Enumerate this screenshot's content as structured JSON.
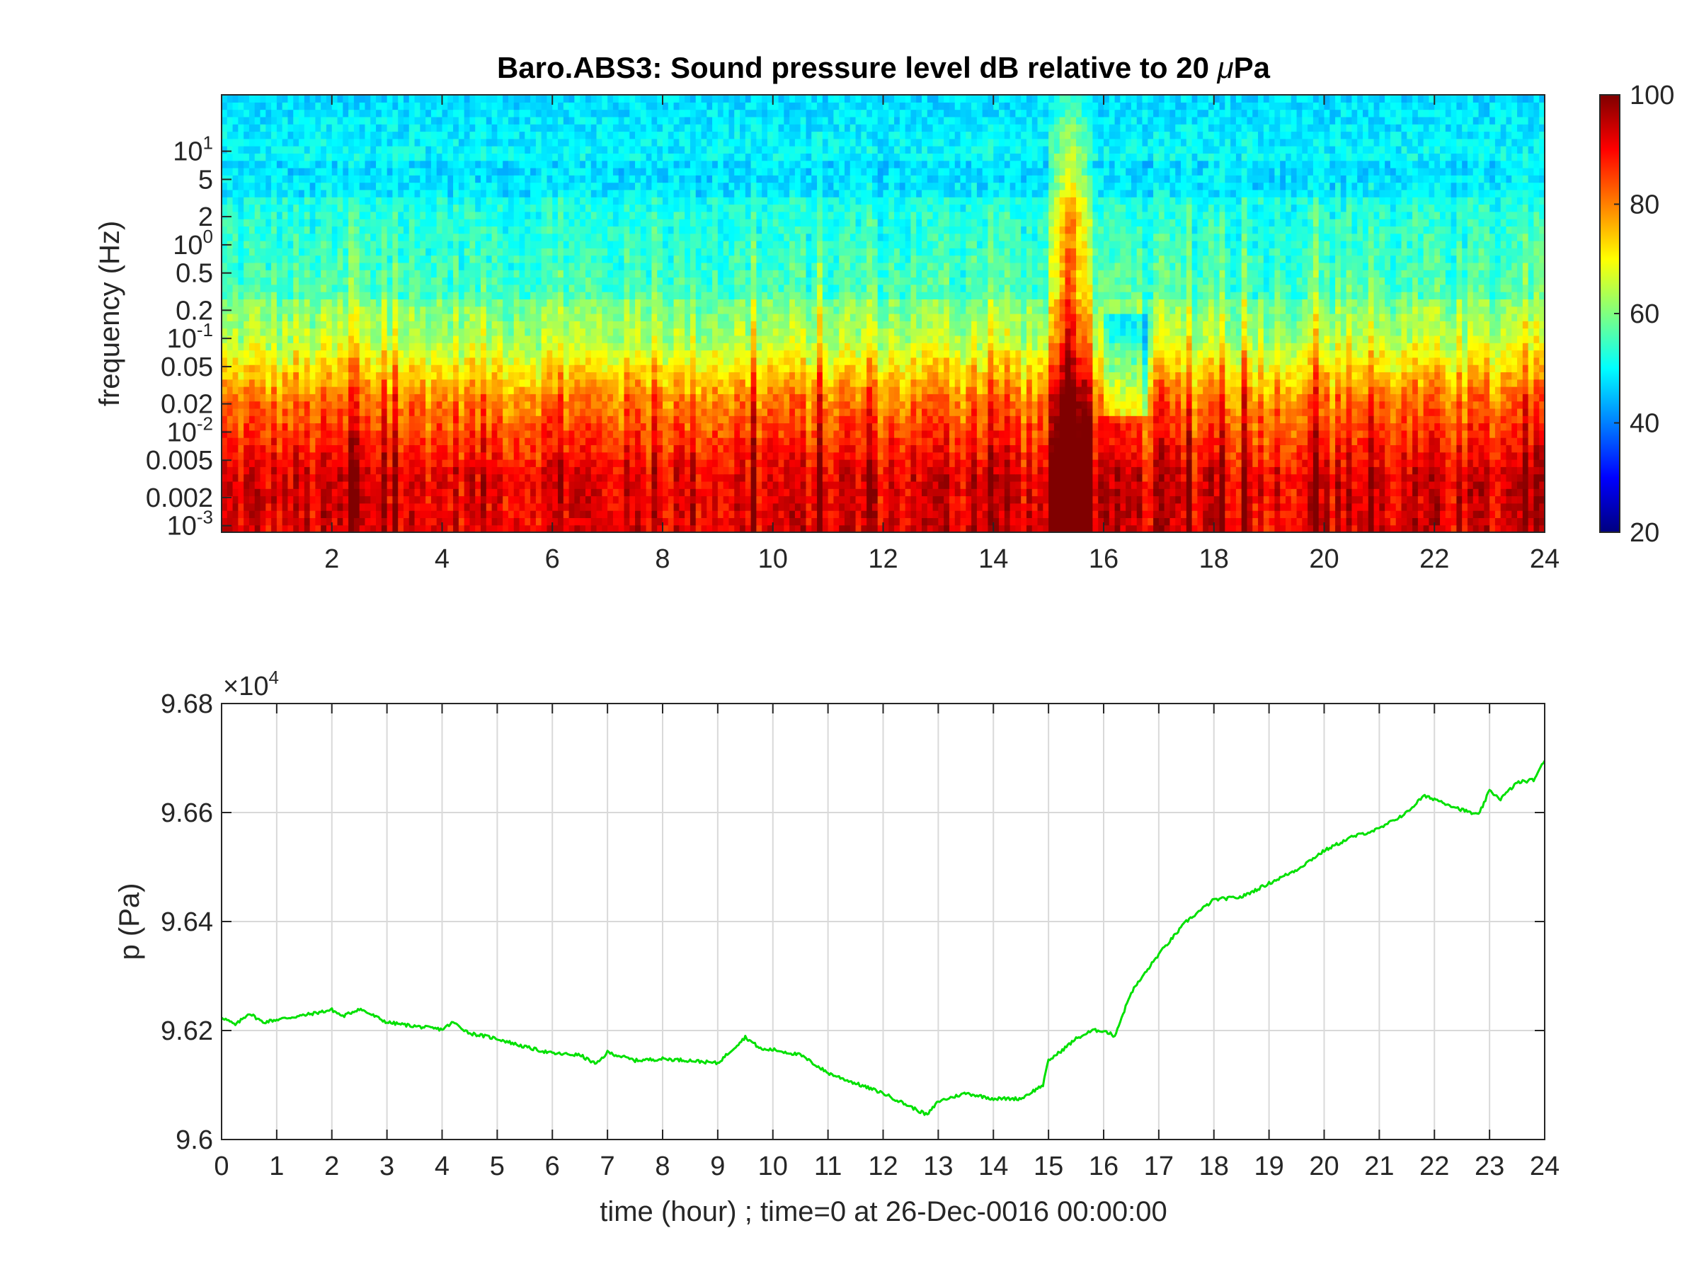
{
  "chart_data": [
    {
      "type": "heatmap",
      "title": "Baro.ABS3: Sound pressure level dB relative to 20 μPa",
      "title_main": "Baro.ABS3: Sound pressure level dB relative to 20 ",
      "title_unit_mu": "μ",
      "title_unit_rest": "Pa",
      "xlabel": "",
      "ylabel": "frequency (Hz)",
      "x_unit": "hour",
      "xlim": [
        0,
        24
      ],
      "ylim": [
        0.00085,
        40
      ],
      "y_scale": "log",
      "x_ticks": [
        2,
        4,
        6,
        8,
        10,
        12,
        14,
        16,
        18,
        20,
        22,
        24
      ],
      "x_tick_labels": [
        "2",
        "4",
        "6",
        "8",
        "10",
        "12",
        "14",
        "16",
        "18",
        "20",
        "22",
        "24"
      ],
      "y_ticks": [
        {
          "value": 10,
          "base": "10",
          "exp": "1"
        },
        {
          "value": 5,
          "label": "5"
        },
        {
          "value": 2,
          "label": "2"
        },
        {
          "value": 1,
          "base": "10",
          "exp": "0"
        },
        {
          "value": 0.5,
          "label": "0.5"
        },
        {
          "value": 0.2,
          "label": "0.2"
        },
        {
          "value": 0.1,
          "base": "10",
          "exp": "-1"
        },
        {
          "value": 0.05,
          "label": "0.05"
        },
        {
          "value": 0.02,
          "label": "0.02"
        },
        {
          "value": 0.01,
          "base": "10",
          "exp": "-2"
        },
        {
          "value": 0.005,
          "label": "0.005"
        },
        {
          "value": 0.002,
          "label": "0.002"
        },
        {
          "value": 0.001,
          "base": "10",
          "exp": "-3"
        }
      ],
      "colormap": "jet",
      "colorbar": {
        "min": 20,
        "max": 100,
        "ticks": [
          20,
          40,
          60,
          80,
          100
        ],
        "tick_labels": [
          "20",
          "40",
          "60",
          "80",
          "100"
        ]
      },
      "grid": false,
      "features": [
        {
          "description_hour_range": [
            15.0,
            15.8
          ],
          "peak_frequency_hz": 20,
          "level_db": 85
        },
        {
          "description_hour_range": [
            16.2,
            16.8
          ],
          "low_band_hz": [
            0.02,
            0.15
          ],
          "level_db": 55
        }
      ]
    },
    {
      "type": "line",
      "title": "",
      "xlabel": "time (hour) ; time=0 at 26-Dec-0016 00:00:00",
      "ylabel": "p (Pa)",
      "xlim": [
        0,
        24
      ],
      "ylim": [
        96000,
        96800
      ],
      "y_multiplier_base": "×10",
      "y_multiplier_exp": "4",
      "x_ticks": [
        0,
        1,
        2,
        3,
        4,
        5,
        6,
        7,
        8,
        9,
        10,
        11,
        12,
        13,
        14,
        15,
        16,
        17,
        18,
        19,
        20,
        21,
        22,
        23,
        24
      ],
      "x_tick_labels": [
        "0",
        "1",
        "2",
        "3",
        "4",
        "5",
        "6",
        "7",
        "8",
        "9",
        "10",
        "11",
        "12",
        "13",
        "14",
        "15",
        "16",
        "17",
        "18",
        "19",
        "20",
        "21",
        "22",
        "23",
        "24"
      ],
      "y_ticks": [
        96000,
        96200,
        96400,
        96600,
        96800
      ],
      "y_tick_labels": [
        "9.6",
        "9.62",
        "9.64",
        "9.66",
        "9.68"
      ],
      "grid": true,
      "series": [
        {
          "color": "#00e000",
          "x": [
            0,
            0.25,
            0.5,
            0.75,
            1,
            1.5,
            2,
            2.2,
            2.5,
            3,
            3.5,
            4,
            4.2,
            4.5,
            5,
            5.5,
            6,
            6.5,
            6.8,
            7,
            7.5,
            8,
            8.5,
            9,
            9.5,
            9.8,
            10,
            10.5,
            11,
            11.5,
            12,
            12.5,
            12.8,
            13,
            13.5,
            14,
            14.5,
            14.9,
            15,
            15.2,
            15.5,
            15.8,
            16,
            16.2,
            16.5,
            17,
            17.5,
            18,
            18.5,
            19,
            19.5,
            20,
            20.5,
            21,
            21.5,
            21.8,
            22,
            22.5,
            22.8,
            23,
            23.2,
            23.5,
            23.8,
            24
          ],
          "y": [
            96225,
            96210,
            96232,
            96215,
            96220,
            96228,
            96238,
            96226,
            96240,
            96215,
            96208,
            96202,
            96215,
            96195,
            96185,
            96170,
            96158,
            96155,
            96138,
            96160,
            96145,
            96148,
            96145,
            96140,
            96188,
            96165,
            96165,
            96155,
            96122,
            96103,
            96085,
            96060,
            96045,
            96070,
            96085,
            96075,
            96075,
            96100,
            96145,
            96160,
            96185,
            96200,
            96200,
            96190,
            96270,
            96340,
            96400,
            96440,
            96445,
            96470,
            96495,
            96530,
            96555,
            96570,
            96600,
            96630,
            96625,
            96605,
            96595,
            96640,
            96625,
            96655,
            96660,
            96695
          ]
        }
      ]
    }
  ]
}
